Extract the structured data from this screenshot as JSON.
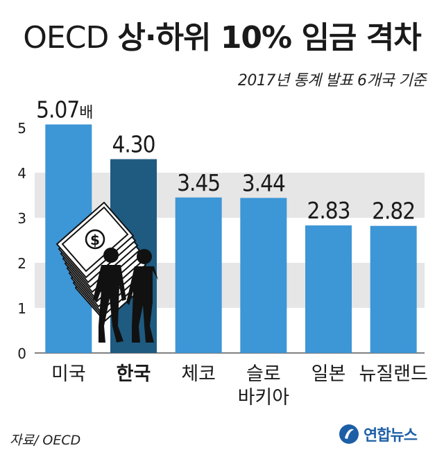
{
  "header": {
    "title_prefix": "OECD",
    "title_main": "상·하위 10% 임금 격차",
    "subtitle": "2017년 통계 발표 6개국 기준"
  },
  "footer": {
    "source": "자료/ OECD",
    "logo_text": "연합뉴스"
  },
  "chart_data": {
    "type": "bar",
    "title": "OECD 상·하위 10% 임금 격차",
    "subtitle": "2017년 통계 발표 6개국 기준",
    "xlabel": "",
    "ylabel": "",
    "categories": [
      [
        "미국"
      ],
      [
        "한국"
      ],
      [
        "체코"
      ],
      [
        "슬로",
        "바키아"
      ],
      [
        "일본"
      ],
      [
        "뉴질랜드"
      ]
    ],
    "values": [
      5.07,
      4.3,
      3.45,
      3.44,
      2.83,
      2.82
    ],
    "value_labels": [
      "5.07",
      "4.30",
      "3.45",
      "3.44",
      "2.83",
      "2.82"
    ],
    "unit_suffix": "배",
    "highlight_index": 1,
    "ylim": [
      0,
      5
    ],
    "yticks": [
      0,
      1,
      2,
      3,
      4,
      5
    ],
    "grid": "alternating-bands",
    "colors": {
      "bar": "#3d96d6",
      "highlight": "#1f5b80",
      "band": "#e6e6e6",
      "text": "#1a1a1a"
    }
  }
}
